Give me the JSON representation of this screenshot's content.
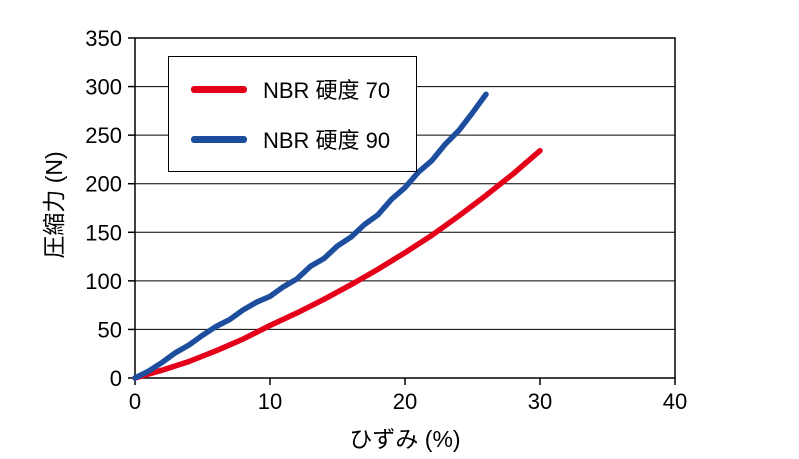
{
  "chart_data": {
    "type": "line",
    "title": "",
    "xlabel": "ひずみ (%)",
    "ylabel": "圧縮力 (N)",
    "xlim": [
      0,
      40
    ],
    "ylim": [
      0,
      350
    ],
    "xticks": [
      0,
      10,
      20,
      30,
      40
    ],
    "yticks": [
      0,
      50,
      100,
      150,
      200,
      250,
      300,
      350
    ],
    "grid": "horizontal",
    "legend_position": "top-left",
    "series": [
      {
        "name": "NBR 硬度 70",
        "color": "#e50019",
        "x": [
          0,
          2,
          4,
          6,
          8,
          10,
          12,
          14,
          16,
          18,
          20,
          22,
          24,
          26,
          28,
          30
        ],
        "y": [
          0,
          8,
          17,
          28,
          40,
          54,
          67,
          81,
          96,
          112,
          129,
          147,
          167,
          188,
          210,
          234
        ]
      },
      {
        "name": "NBR 硬度 90",
        "color": "#1c4e9d",
        "x": [
          0,
          1,
          2,
          3,
          4,
          5,
          6,
          7,
          8,
          9,
          10,
          11,
          12,
          13,
          14,
          15,
          16,
          17,
          18,
          19,
          20,
          21,
          22,
          23,
          24,
          25,
          26
        ],
        "y": [
          0,
          7,
          16,
          26,
          34,
          44,
          53,
          60,
          70,
          78,
          84,
          94,
          102,
          115,
          123,
          136,
          145,
          158,
          168,
          184,
          196,
          212,
          224,
          241,
          255,
          273,
          292
        ]
      }
    ]
  },
  "colors": {
    "axis": "#000000",
    "grid": "#000000",
    "background": "#ffffff"
  }
}
